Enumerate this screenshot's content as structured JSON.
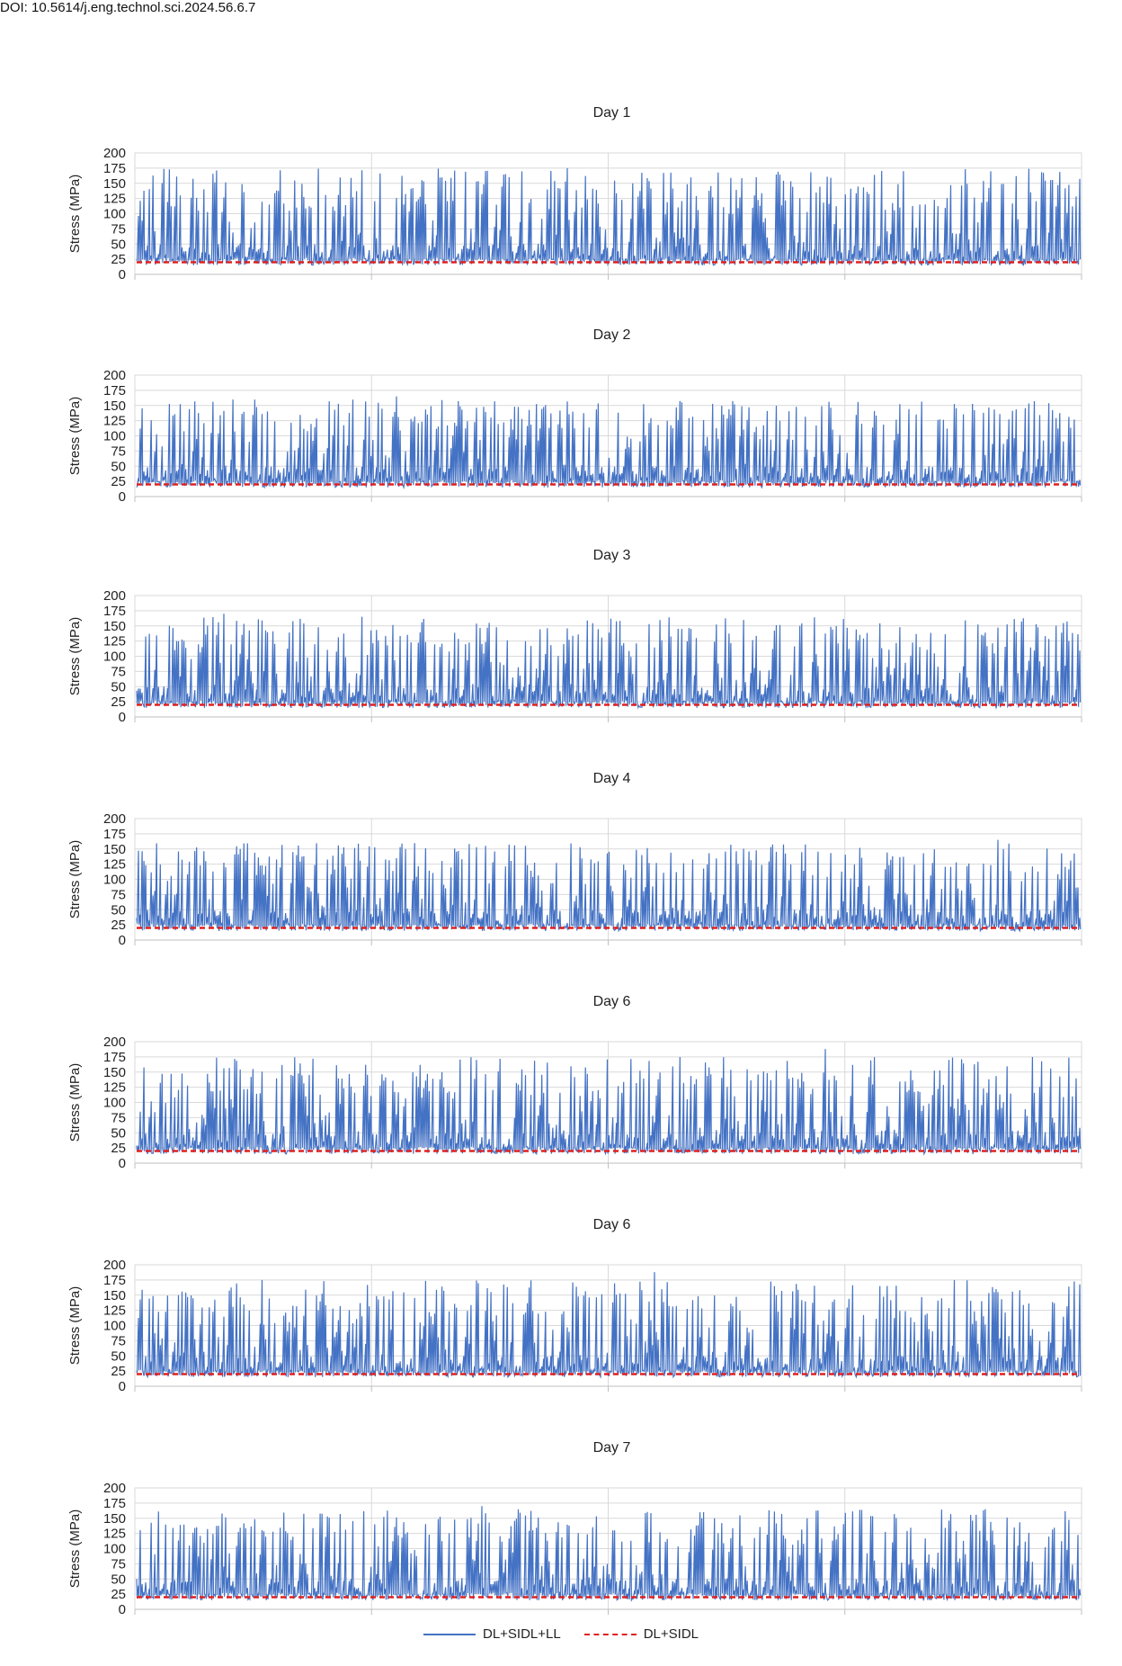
{
  "doi": "DOI: 10.5614/j.eng.technol.sci.2024.56.6.7",
  "legend": [
    {
      "label": "DL+SIDL+LL",
      "color": "#4472c4",
      "style": "solid"
    },
    {
      "label": "DL+SIDL",
      "color": "#e02020",
      "style": "dashed"
    }
  ],
  "chart_data": [
    {
      "type": "line",
      "title": "Day 1",
      "ylabel": "Stress (MPa)",
      "ylim": [
        0,
        200
      ],
      "yticks": [
        0,
        25,
        50,
        75,
        100,
        125,
        150,
        175,
        200
      ],
      "x_ticks_count": 5,
      "grid": true,
      "series": [
        {
          "name": "DL+SIDL+LL",
          "color": "#4472c4",
          "min": 15,
          "max_peak": 175,
          "typical_peak_range": [
            110,
            175
          ]
        },
        {
          "name": "DL+SIDL",
          "color": "#e02020",
          "constant": 20
        }
      ]
    },
    {
      "type": "line",
      "title": "Day 2",
      "ylabel": "Stress (MPa)",
      "ylim": [
        0,
        200
      ],
      "yticks": [
        0,
        25,
        50,
        75,
        100,
        125,
        150,
        175,
        200
      ],
      "x_ticks_count": 5,
      "grid": true,
      "series": [
        {
          "name": "DL+SIDL+LL",
          "color": "#4472c4",
          "min": 15,
          "max_peak": 165,
          "typical_peak_range": [
            110,
            160
          ]
        },
        {
          "name": "DL+SIDL",
          "color": "#e02020",
          "constant": 20
        }
      ]
    },
    {
      "type": "line",
      "title": "Day 3",
      "ylabel": "Stress (MPa)",
      "ylim": [
        0,
        200
      ],
      "yticks": [
        0,
        25,
        50,
        75,
        100,
        125,
        150,
        175,
        200
      ],
      "x_ticks_count": 5,
      "grid": true,
      "series": [
        {
          "name": "DL+SIDL+LL",
          "color": "#4472c4",
          "min": 15,
          "max_peak": 170,
          "typical_peak_range": [
            110,
            165
          ]
        },
        {
          "name": "DL+SIDL",
          "color": "#e02020",
          "constant": 20
        }
      ]
    },
    {
      "type": "line",
      "title": "Day 4",
      "ylabel": "Stress (MPa)",
      "ylim": [
        0,
        200
      ],
      "yticks": [
        0,
        25,
        50,
        75,
        100,
        125,
        150,
        175,
        200
      ],
      "x_ticks_count": 5,
      "grid": true,
      "series": [
        {
          "name": "DL+SIDL+LL",
          "color": "#4472c4",
          "min": 15,
          "max_peak": 165,
          "typical_peak_range": [
            110,
            160
          ]
        },
        {
          "name": "DL+SIDL",
          "color": "#e02020",
          "constant": 20
        }
      ]
    },
    {
      "type": "line",
      "title": "Day 6",
      "ylabel": "Stress (MPa)",
      "ylim": [
        0,
        200
      ],
      "yticks": [
        0,
        25,
        50,
        75,
        100,
        125,
        150,
        175,
        200
      ],
      "x_ticks_count": 5,
      "grid": true,
      "series": [
        {
          "name": "DL+SIDL+LL",
          "color": "#4472c4",
          "min": 15,
          "max_peak": 188,
          "typical_peak_range": [
            110,
            175
          ]
        },
        {
          "name": "DL+SIDL",
          "color": "#e02020",
          "constant": 20
        }
      ]
    },
    {
      "type": "line",
      "title": "Day 6",
      "ylabel": "Stress (MPa)",
      "ylim": [
        0,
        200
      ],
      "yticks": [
        0,
        25,
        50,
        75,
        100,
        125,
        150,
        175,
        200
      ],
      "x_ticks_count": 5,
      "grid": true,
      "series": [
        {
          "name": "DL+SIDL+LL",
          "color": "#4472c4",
          "min": 15,
          "max_peak": 188,
          "typical_peak_range": [
            110,
            175
          ]
        },
        {
          "name": "DL+SIDL",
          "color": "#e02020",
          "constant": 20
        }
      ]
    },
    {
      "type": "line",
      "title": "Day 7",
      "ylabel": "Stress (MPa)",
      "ylim": [
        0,
        200
      ],
      "yticks": [
        0,
        25,
        50,
        75,
        100,
        125,
        150,
        175,
        200
      ],
      "x_ticks_count": 5,
      "grid": true,
      "series": [
        {
          "name": "DL+SIDL+LL",
          "color": "#4472c4",
          "min": 15,
          "max_peak": 170,
          "typical_peak_range": [
            110,
            165
          ]
        },
        {
          "name": "DL+SIDL",
          "color": "#e02020",
          "constant": 20
        }
      ]
    }
  ]
}
